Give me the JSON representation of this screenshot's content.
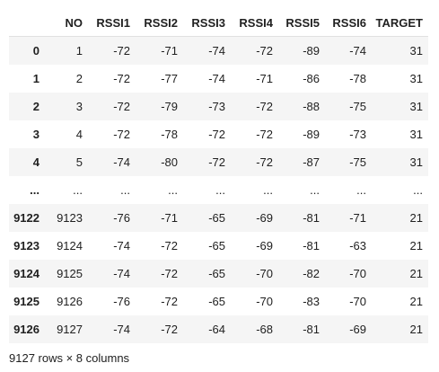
{
  "table": {
    "columns": [
      "",
      "NO",
      "RSSI1",
      "RSSI2",
      "RSSI3",
      "RSSI4",
      "RSSI5",
      "RSSI6",
      "TARGET"
    ],
    "rows": [
      {
        "index": "0",
        "cells": [
          "1",
          "-72",
          "-71",
          "-74",
          "-72",
          "-89",
          "-74",
          "31"
        ]
      },
      {
        "index": "1",
        "cells": [
          "2",
          "-72",
          "-77",
          "-74",
          "-71",
          "-86",
          "-78",
          "31"
        ]
      },
      {
        "index": "2",
        "cells": [
          "3",
          "-72",
          "-79",
          "-73",
          "-72",
          "-88",
          "-75",
          "31"
        ]
      },
      {
        "index": "3",
        "cells": [
          "4",
          "-72",
          "-78",
          "-72",
          "-72",
          "-89",
          "-73",
          "31"
        ]
      },
      {
        "index": "4",
        "cells": [
          "5",
          "-74",
          "-80",
          "-72",
          "-72",
          "-87",
          "-75",
          "31"
        ]
      },
      {
        "index": "...",
        "cells": [
          "...",
          "...",
          "...",
          "...",
          "...",
          "...",
          "...",
          "..."
        ]
      },
      {
        "index": "9122",
        "cells": [
          "9123",
          "-76",
          "-71",
          "-65",
          "-69",
          "-81",
          "-71",
          "21"
        ]
      },
      {
        "index": "9123",
        "cells": [
          "9124",
          "-74",
          "-72",
          "-65",
          "-69",
          "-81",
          "-63",
          "21"
        ]
      },
      {
        "index": "9124",
        "cells": [
          "9125",
          "-74",
          "-72",
          "-65",
          "-70",
          "-82",
          "-70",
          "21"
        ]
      },
      {
        "index": "9125",
        "cells": [
          "9126",
          "-76",
          "-72",
          "-65",
          "-70",
          "-83",
          "-70",
          "21"
        ]
      },
      {
        "index": "9126",
        "cells": [
          "9127",
          "-74",
          "-72",
          "-64",
          "-68",
          "-81",
          "-69",
          "21"
        ]
      }
    ]
  },
  "footer": {
    "shape_text": "9127 rows × 8 columns"
  }
}
